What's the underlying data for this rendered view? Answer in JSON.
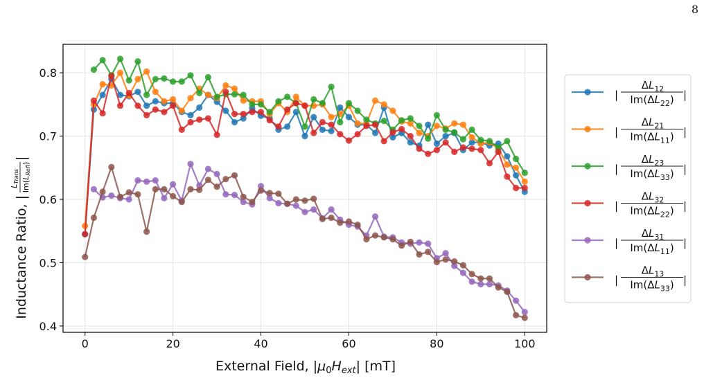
{
  "page_number": "8",
  "chart_data": {
    "type": "line",
    "xlabel": "External Field, |μ0Hext| [mT]",
    "ylabel": "Inductance Ratio, |LTrans / Im(LRefl)|",
    "xlim": [
      -5,
      105
    ],
    "ylim": [
      0.39,
      0.845
    ],
    "xticks": [
      0,
      20,
      40,
      60,
      80,
      100
    ],
    "yticks": [
      0.4,
      0.5,
      0.6,
      0.7,
      0.8
    ],
    "grid": true,
    "legend_position": "right-outside",
    "x": [
      0,
      2,
      4,
      6,
      8,
      10,
      12,
      14,
      16,
      18,
      20,
      22,
      24,
      26,
      28,
      30,
      32,
      34,
      36,
      38,
      40,
      42,
      44,
      46,
      48,
      50,
      52,
      54,
      56,
      58,
      60,
      62,
      64,
      66,
      68,
      70,
      72,
      74,
      76,
      78,
      80,
      82,
      84,
      86,
      88,
      90,
      92,
      94,
      96,
      98,
      100
    ],
    "series": [
      {
        "num": "12",
        "den": "22",
        "color": "#1f77b4",
        "values": [
          0.545,
          0.742,
          0.765,
          0.79,
          0.765,
          0.763,
          0.77,
          0.748,
          0.755,
          0.752,
          0.752,
          0.738,
          0.733,
          0.745,
          0.765,
          0.754,
          0.74,
          0.722,
          0.728,
          0.744,
          0.732,
          0.728,
          0.71,
          0.715,
          0.738,
          0.7,
          0.73,
          0.71,
          0.708,
          0.745,
          0.73,
          0.718,
          0.718,
          0.705,
          0.745,
          0.698,
          0.705,
          0.69,
          0.685,
          0.718,
          0.688,
          0.7,
          0.705,
          0.678,
          0.69,
          0.69,
          0.685,
          0.688,
          0.668,
          0.638,
          0.612
        ]
      },
      {
        "num": "21",
        "den": "11",
        "color": "#ff7f0e",
        "values": [
          0.558,
          0.75,
          0.782,
          0.78,
          0.8,
          0.764,
          0.79,
          0.802,
          0.77,
          0.755,
          0.758,
          0.74,
          0.76,
          0.775,
          0.765,
          0.76,
          0.78,
          0.775,
          0.756,
          0.755,
          0.755,
          0.735,
          0.752,
          0.738,
          0.762,
          0.748,
          0.748,
          0.75,
          0.73,
          0.735,
          0.748,
          0.72,
          0.72,
          0.756,
          0.75,
          0.74,
          0.723,
          0.72,
          0.705,
          0.7,
          0.716,
          0.712,
          0.72,
          0.718,
          0.698,
          0.688,
          0.69,
          0.68,
          0.655,
          0.65,
          0.628
        ]
      },
      {
        "num": "23",
        "den": "33",
        "color": "#2ca02c",
        "values": [
          null,
          0.805,
          0.82,
          0.796,
          0.822,
          0.788,
          0.818,
          0.765,
          0.79,
          0.791,
          0.786,
          0.786,
          0.796,
          0.768,
          0.793,
          0.762,
          0.766,
          0.766,
          0.765,
          0.75,
          0.75,
          0.738,
          0.755,
          0.762,
          0.752,
          0.715,
          0.758,
          0.752,
          0.778,
          0.722,
          0.752,
          0.74,
          0.726,
          0.72,
          0.724,
          0.71,
          0.725,
          0.728,
          0.716,
          0.696,
          0.733,
          0.71,
          0.706,
          0.695,
          0.71,
          0.694,
          0.692,
          0.682,
          0.692,
          0.664,
          0.642
        ]
      },
      {
        "num": "32",
        "den": "22",
        "color": "#d62728",
        "values": [
          0.545,
          0.756,
          0.736,
          0.795,
          0.748,
          0.768,
          0.748,
          0.733,
          0.742,
          0.738,
          0.748,
          0.71,
          0.722,
          0.726,
          0.728,
          0.702,
          0.77,
          0.735,
          0.735,
          0.738,
          0.738,
          0.725,
          0.715,
          0.742,
          0.752,
          0.748,
          0.705,
          0.722,
          0.718,
          0.703,
          0.693,
          0.703,
          0.716,
          0.718,
          0.692,
          0.706,
          0.711,
          0.7,
          0.68,
          0.672,
          0.678,
          0.69,
          0.675,
          0.682,
          0.68,
          0.678,
          0.657,
          0.675,
          0.636,
          0.618,
          0.618
        ]
      },
      {
        "num": "31",
        "den": "11",
        "color": "#9467bd",
        "values": [
          null,
          0.616,
          0.603,
          0.606,
          0.602,
          0.6,
          0.63,
          0.628,
          0.63,
          0.602,
          0.624,
          0.598,
          0.656,
          0.622,
          0.648,
          0.64,
          0.608,
          0.607,
          0.596,
          0.592,
          0.621,
          0.602,
          0.594,
          0.593,
          0.59,
          0.58,
          0.584,
          0.57,
          0.584,
          0.568,
          0.56,
          0.557,
          0.543,
          0.573,
          0.541,
          0.54,
          0.532,
          0.53,
          0.532,
          0.53,
          0.507,
          0.515,
          0.495,
          0.484,
          0.47,
          0.466,
          0.466,
          0.464,
          0.456,
          0.44,
          0.422
        ]
      },
      {
        "num": "13",
        "den": "33",
        "color": "#8c564b",
        "values": [
          0.509,
          0.571,
          0.612,
          0.651,
          0.604,
          0.611,
          0.608,
          0.549,
          0.616,
          0.616,
          0.605,
          0.596,
          0.616,
          0.615,
          0.631,
          0.62,
          0.632,
          0.638,
          0.604,
          0.596,
          0.614,
          0.61,
          0.609,
          0.593,
          0.6,
          0.598,
          0.601,
          0.569,
          0.571,
          0.563,
          0.565,
          0.56,
          0.537,
          0.543,
          0.54,
          0.537,
          0.527,
          0.533,
          0.513,
          0.517,
          0.501,
          0.505,
          0.502,
          0.496,
          0.482,
          0.475,
          0.475,
          0.461,
          0.454,
          0.417,
          0.413
        ]
      }
    ]
  }
}
